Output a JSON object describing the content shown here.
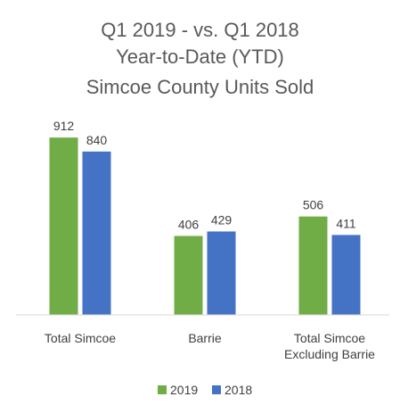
{
  "chart_data": {
    "type": "bar",
    "title_lines": [
      "Q1 2019 - vs. Q1 2018",
      "Year-to-Date (YTD)",
      "Simcoe County Units Sold"
    ],
    "categories": [
      [
        "Total Simcoe"
      ],
      [
        "Barrie"
      ],
      [
        "Total Simcoe",
        "Excluding Barrie"
      ]
    ],
    "series": [
      {
        "name": "2019",
        "color": "#70ad47",
        "values": [
          912,
          406,
          506
        ]
      },
      {
        "name": "2018",
        "color": "#4472c4",
        "values": [
          840,
          429,
          411
        ]
      }
    ],
    "ylim": [
      0,
      1000
    ],
    "grid": false,
    "legend_position": "bottom",
    "data_labels": true
  }
}
